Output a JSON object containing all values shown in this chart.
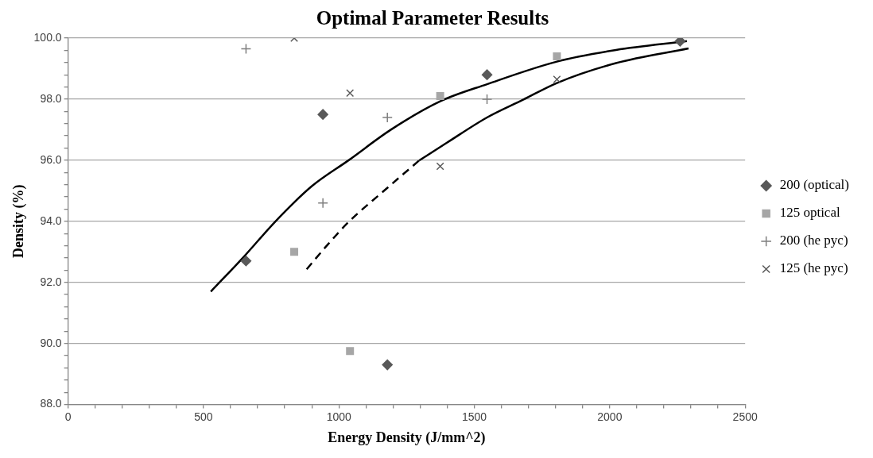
{
  "chart_data": {
    "type": "scatter",
    "title": "Optimal Parameter Results",
    "xlabel": "Energy Density (J/mm^2)",
    "ylabel": "Density (%)",
    "xlim": [
      0,
      2500
    ],
    "ylim": [
      88,
      100
    ],
    "xticks": [
      0,
      {
        "value": 100,
        "label": null
      },
      {
        "value": 200,
        "label": null
      },
      {
        "value": 300,
        "label": null
      },
      {
        "value": 400,
        "label": null
      },
      500,
      {
        "value": 600,
        "label": null
      },
      {
        "value": 700,
        "label": null
      },
      {
        "value": 800,
        "label": null
      },
      {
        "value": 900,
        "label": null
      },
      1000,
      {
        "value": 1100,
        "label": null
      },
      {
        "value": 1200,
        "label": null
      },
      {
        "value": 1300,
        "label": null
      },
      {
        "value": 1400,
        "label": null
      },
      1500,
      {
        "value": 1600,
        "label": null
      },
      {
        "value": 1700,
        "label": null
      },
      {
        "value": 1800,
        "label": null
      },
      {
        "value": 1900,
        "label": null
      },
      2000,
      {
        "value": 2100,
        "label": null
      },
      {
        "value": 2200,
        "label": null
      },
      {
        "value": 2300,
        "label": null
      },
      {
        "value": 2400,
        "label": null
      },
      2500
    ],
    "yticks": [
      {
        "value": 88,
        "label": "88.0"
      },
      {
        "value": 88.4,
        "label": null
      },
      {
        "value": 88.8,
        "label": null
      },
      {
        "value": 89.2,
        "label": null
      },
      {
        "value": 89.6,
        "label": null
      },
      {
        "value": 90,
        "label": "90.0"
      },
      {
        "value": 90.4,
        "label": null
      },
      {
        "value": 90.8,
        "label": null
      },
      {
        "value": 91.2,
        "label": null
      },
      {
        "value": 91.6,
        "label": null
      },
      {
        "value": 92,
        "label": "92.0"
      },
      {
        "value": 92.4,
        "label": null
      },
      {
        "value": 92.8,
        "label": null
      },
      {
        "value": 93.2,
        "label": null
      },
      {
        "value": 93.6,
        "label": null
      },
      {
        "value": 94,
        "label": "94.0"
      },
      {
        "value": 94.4,
        "label": null
      },
      {
        "value": 94.8,
        "label": null
      },
      {
        "value": 95.2,
        "label": null
      },
      {
        "value": 95.6,
        "label": null
      },
      {
        "value": 96,
        "label": "96.0"
      },
      {
        "value": 96.4,
        "label": null
      },
      {
        "value": 96.8,
        "label": null
      },
      {
        "value": 97.2,
        "label": null
      },
      {
        "value": 97.6,
        "label": null
      },
      {
        "value": 98,
        "label": "98.0"
      },
      {
        "value": 98.4,
        "label": null
      },
      {
        "value": 98.8,
        "label": null
      },
      {
        "value": 99.2,
        "label": null
      },
      {
        "value": 99.6,
        "label": null
      },
      {
        "value": 100,
        "label": "100.0"
      }
    ],
    "grid": "y",
    "legend": "right",
    "series": [
      {
        "name": "200 (optical)",
        "color": "#595959",
        "marker": "diamond",
        "x": [
          657,
          941,
          1179,
          1547,
          2260
        ],
        "values": [
          92.7,
          97.5,
          89.3,
          98.8,
          99.9
        ]
      },
      {
        "name": "125 optical",
        "color": "#a6a6a6",
        "marker": "square",
        "x": [
          835,
          1041,
          1374,
          1805
        ],
        "values": [
          93.0,
          89.75,
          98.1,
          99.4
        ]
      },
      {
        "name": "200 (he pyc)",
        "color": "#7f7f7f",
        "marker": "plus",
        "x": [
          657,
          941,
          1179,
          1547
        ],
        "values": [
          99.65,
          94.6,
          97.4,
          98.0
        ]
      },
      {
        "name": "125 (he pyc)",
        "color": "#595959",
        "marker": "cross",
        "x": [
          835,
          1041,
          1374,
          1805
        ],
        "values": [
          100.0,
          98.2,
          95.8,
          98.65
        ]
      },
      {
        "type": "line",
        "color": "#000000",
        "line_style": "solid",
        "x": [
          527,
          650,
          766,
          900,
          1036,
          1192,
          1374,
          1547,
          1805,
          2023,
          2285
        ],
        "values": [
          91.7,
          92.85,
          94.0,
          95.15,
          96.0,
          97.0,
          97.93,
          98.49,
          99.23,
          99.61,
          99.9
        ]
      },
      {
        "type": "line",
        "color": "#000000",
        "line_style": "dashed",
        "x": [
          881,
          960,
          1036,
          1160,
          1296
        ],
        "values": [
          92.43,
          93.25,
          93.98,
          94.95,
          95.99
        ]
      },
      {
        "type": "line",
        "color": "#000000",
        "line_style": "solid",
        "x": [
          1296,
          1400,
          1547,
          1680,
          1805,
          2023,
          2291
        ],
        "values": [
          95.99,
          96.58,
          97.4,
          97.98,
          98.53,
          99.18,
          99.66
        ]
      }
    ]
  }
}
